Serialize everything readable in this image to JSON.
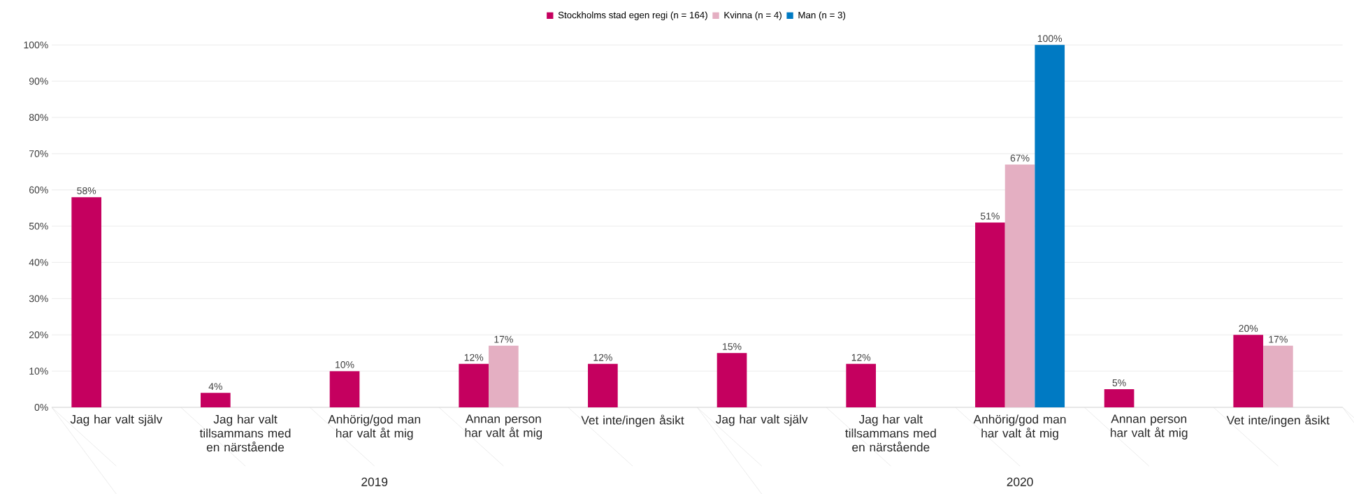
{
  "chart_data": {
    "type": "bar",
    "categories": [
      "Jag har valt själv",
      "Jag har valt tillsammans med en närstående",
      "Anhörig/god man har valt åt mig",
      "Annan person har valt åt mig",
      "Vet inte/ingen åsikt",
      "Jag har valt själv",
      "Jag har valt tillsammans med en närstående",
      "Anhörig/god man har valt åt mig",
      "Annan person har valt åt mig",
      "Vet inte/ingen åsikt"
    ],
    "series": [
      {
        "name": "Stockholms stad egen regi (n = 164)",
        "color": "#c5005f",
        "values": [
          58,
          4,
          10,
          12,
          12,
          15,
          12,
          51,
          5,
          20
        ],
        "value_labels": [
          "58%",
          "4%",
          "10%",
          "12%",
          "12%",
          "15%",
          "12%",
          "51%",
          "5%",
          "20%"
        ]
      },
      {
        "name": "Kvinna (n = 4)",
        "color": "#e4afc2",
        "values": [
          null,
          null,
          null,
          17,
          null,
          null,
          null,
          67,
          null,
          17
        ],
        "value_labels": [
          null,
          null,
          null,
          "17%",
          null,
          null,
          null,
          "67%",
          null,
          "17%"
        ]
      },
      {
        "name": "Man (n = 3)",
        "color": "#007ac3",
        "values": [
          null,
          null,
          null,
          null,
          null,
          null,
          null,
          100,
          null,
          null
        ],
        "value_labels": [
          null,
          null,
          null,
          null,
          null,
          null,
          null,
          "100%",
          null,
          null
        ]
      }
    ],
    "ylim": [
      0,
      100
    ],
    "yticks": [
      {
        "value": 0,
        "label": "0%"
      },
      {
        "value": 10,
        "label": "10%"
      },
      {
        "value": 20,
        "label": "20%"
      },
      {
        "value": 30,
        "label": "30%"
      },
      {
        "value": 40,
        "label": "40%"
      },
      {
        "value": 50,
        "label": "50%"
      },
      {
        "value": 60,
        "label": "60%"
      },
      {
        "value": 70,
        "label": "70%"
      },
      {
        "value": 80,
        "label": "80%"
      },
      {
        "value": 90,
        "label": "90%"
      },
      {
        "value": 100,
        "label": "100%"
      }
    ],
    "annotations": [
      "2019",
      "2020"
    ],
    "grid": "y",
    "legend": "top"
  }
}
